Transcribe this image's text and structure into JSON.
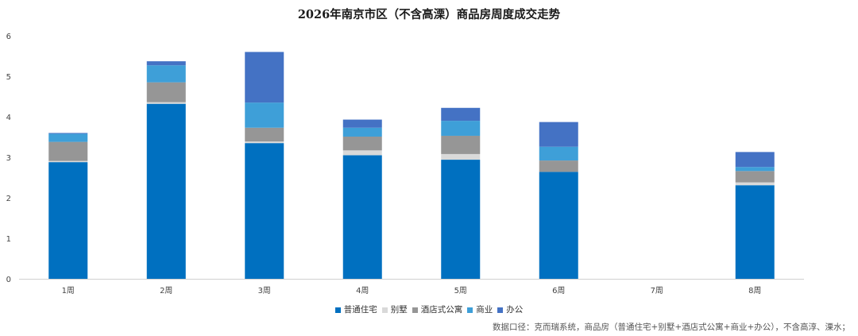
{
  "chart_data": {
    "type": "bar",
    "stacked": true,
    "title": "2026年南京市区（不含高溧）商品房周度成交走势",
    "categories": [
      "1周",
      "2周",
      "3周",
      "4周",
      "5周",
      "6周",
      "7周",
      "8周"
    ],
    "ylim": [
      0,
      6
    ],
    "yticks": [
      "0",
      "1",
      "2",
      "3",
      "4",
      "5",
      "6"
    ],
    "grid": false,
    "legend_position": "bottom",
    "series": [
      {
        "name": "普通住宅",
        "color": "#0070C0",
        "values": [
          2.88,
          4.32,
          3.35,
          3.05,
          2.94,
          2.64,
          0,
          2.31
        ]
      },
      {
        "name": "别墅",
        "color": "#D9D9D9",
        "values": [
          0.03,
          0.04,
          0.04,
          0.12,
          0.14,
          0.0,
          0,
          0.07
        ]
      },
      {
        "name": "酒店式公寓",
        "color": "#969696",
        "values": [
          0.47,
          0.49,
          0.34,
          0.34,
          0.45,
          0.28,
          0,
          0.28
        ]
      },
      {
        "name": "商业",
        "color": "#3E9FD8",
        "values": [
          0.2,
          0.42,
          0.62,
          0.22,
          0.37,
          0.34,
          0,
          0.1
        ]
      },
      {
        "name": "办公",
        "color": "#4472C4",
        "values": [
          0.02,
          0.1,
          1.25,
          0.2,
          0.32,
          0.61,
          0,
          0.37
        ]
      }
    ]
  },
  "footnote": "数据口径：克而瑞系统，商品房（普通住宅+别墅+酒店式公寓+商业+办公），不含高淳、溧水；"
}
